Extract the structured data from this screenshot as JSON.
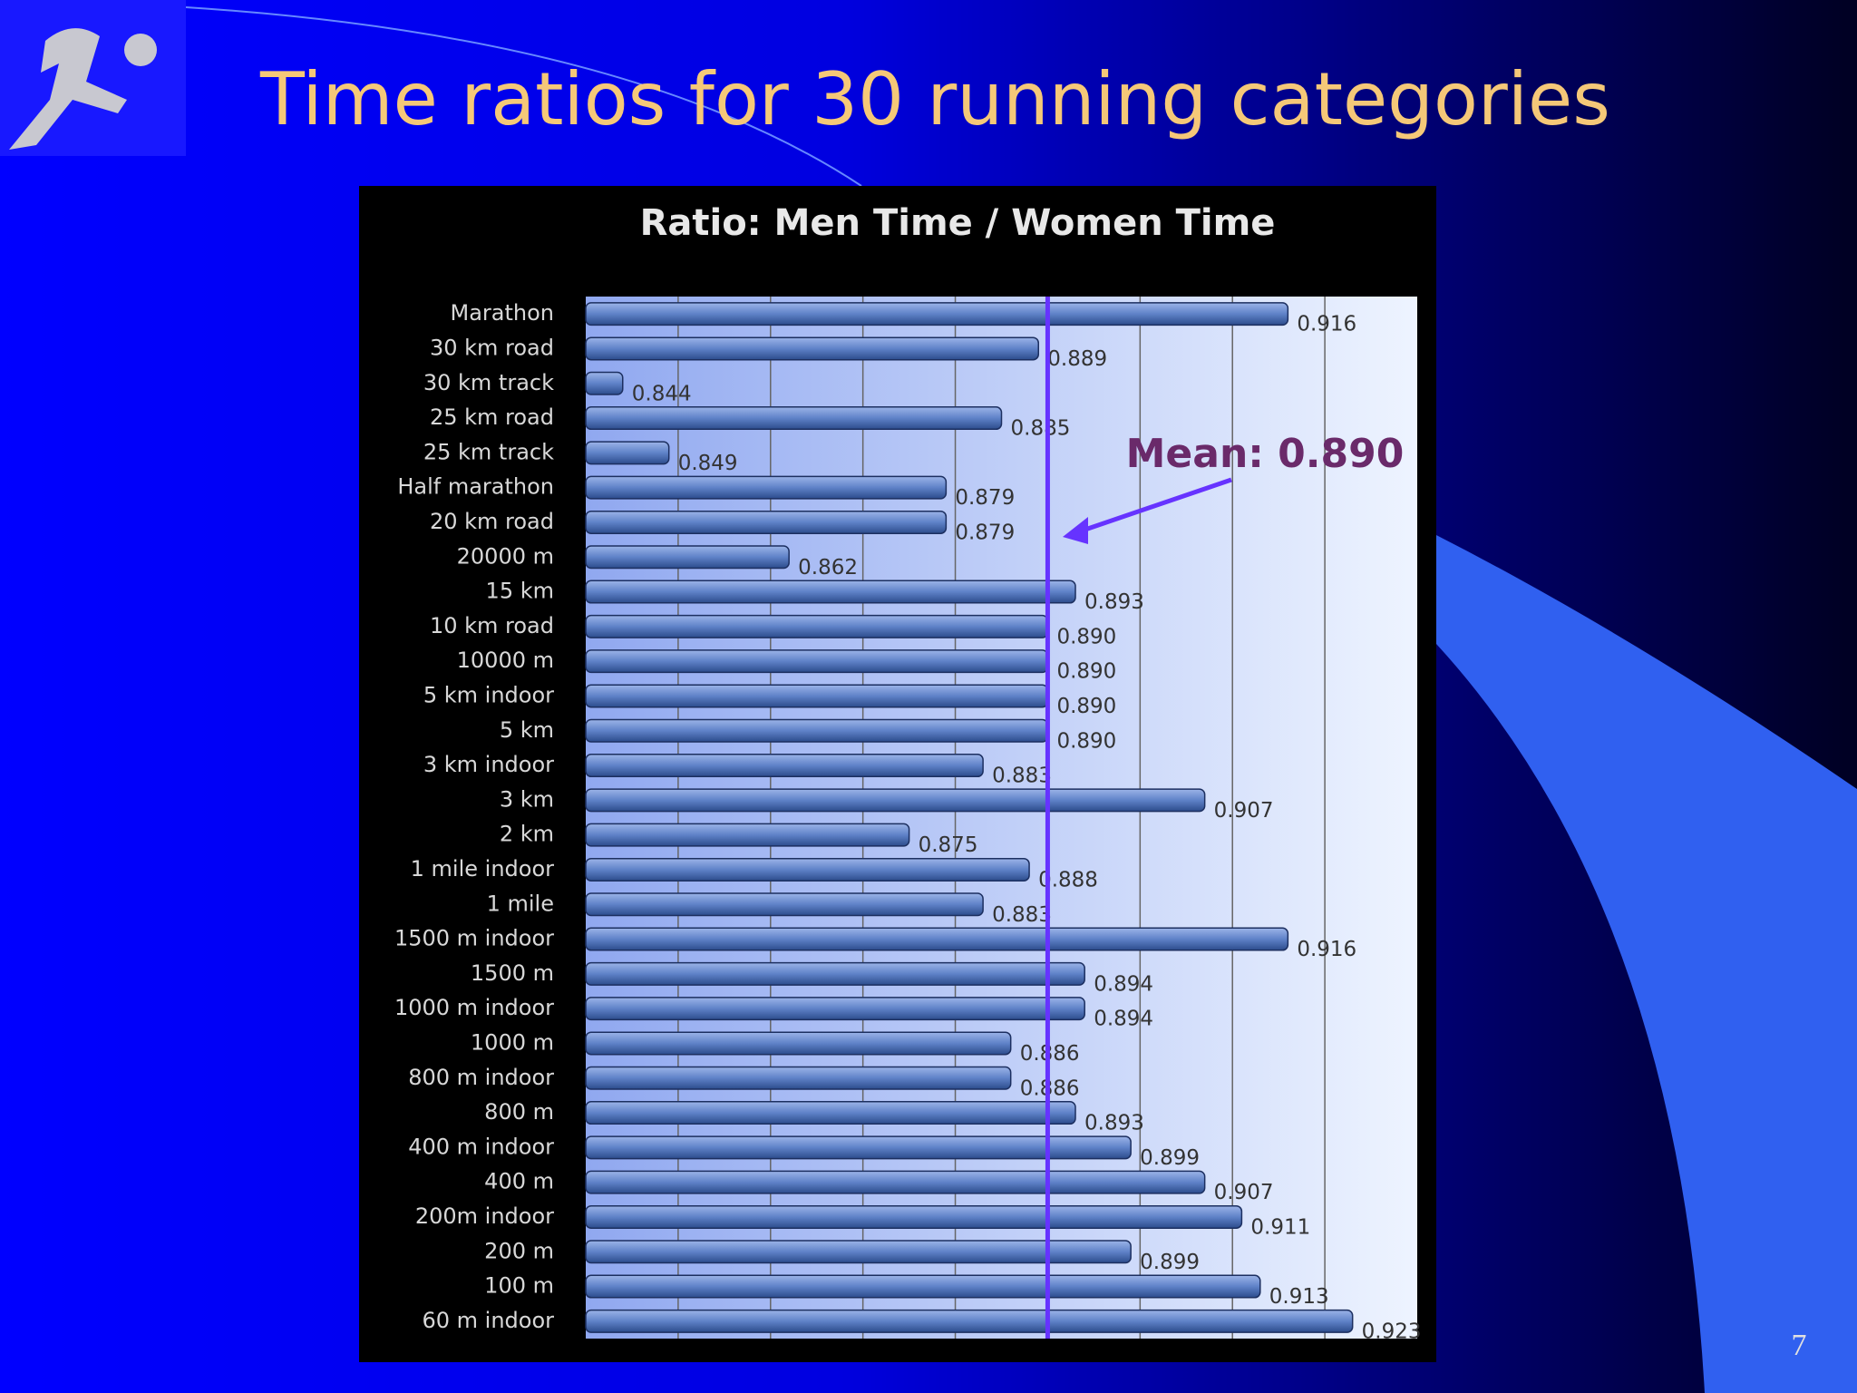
{
  "slide": {
    "title": "Time ratios for 30 running categories",
    "page_number": "7"
  },
  "chart_data": {
    "type": "bar",
    "orientation": "horizontal",
    "title": "Ratio: Men Time / Women Time",
    "categories": [
      "Marathon",
      "30 km road",
      "30 km track",
      "25 km road",
      "25 km track",
      "Half marathon",
      "20 km road",
      "20000 m",
      "15 km",
      "10 km road",
      "10000 m",
      "5 km indoor",
      "5 km",
      "3 km indoor",
      "3 km",
      "2 km",
      "1 mile indoor",
      "1 mile",
      "1500 m indoor",
      "1500 m",
      "1000 m indoor",
      "1000 m",
      "800 m indoor",
      "800 m",
      "400 m indoor",
      "400 m",
      "200m indoor",
      "200 m",
      "100 m",
      "60 m indoor"
    ],
    "values": [
      0.916,
      0.889,
      0.844,
      0.885,
      0.849,
      0.879,
      0.879,
      0.862,
      0.893,
      0.89,
      0.89,
      0.89,
      0.89,
      0.883,
      0.907,
      0.875,
      0.888,
      0.883,
      0.916,
      0.894,
      0.894,
      0.886,
      0.886,
      0.893,
      0.899,
      0.907,
      0.911,
      0.899,
      0.913,
      0.923
    ],
    "value_labels": [
      "0.916",
      "0.889",
      "0.844",
      "0.885",
      "0.849",
      "0.879",
      "0.879",
      "0.862",
      "0.893",
      "0.890",
      "0.890",
      "0.890",
      "0.890",
      "0.883",
      "0.907",
      "0.875",
      "0.888",
      "0.883",
      "0.916",
      "0.894",
      "0.894",
      "0.886",
      "0.886",
      "0.893",
      "0.899",
      "0.907",
      "0.911",
      "0.899",
      "0.913",
      "0.923"
    ],
    "color": "#5f82c8",
    "xlim": [
      0.84,
      0.93
    ],
    "xticks": [
      0.85,
      0.86,
      0.87,
      0.88,
      0.89,
      0.9,
      0.91,
      0.92
    ],
    "grid": true,
    "mean": {
      "text": "Mean: 0.890",
      "value": 0.89,
      "color": "#6633ff"
    }
  }
}
